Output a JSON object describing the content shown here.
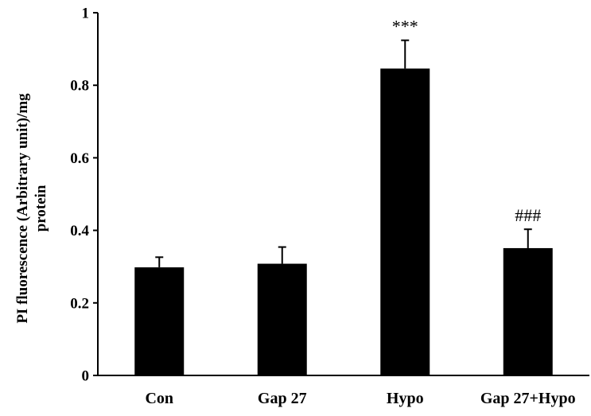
{
  "chart_data": {
    "type": "bar",
    "categories": [
      "Con",
      "Gap 27",
      "Hypo",
      "Gap 27+Hypo"
    ],
    "values": [
      0.298,
      0.308,
      0.846,
      0.351
    ],
    "errors": [
      0.028,
      0.046,
      0.078,
      0.052
    ],
    "annotations": [
      "",
      "",
      "***",
      "###"
    ],
    "ylabel_lines": [
      "PI fluorescence (Arbitrary unit)/mg",
      "protein"
    ],
    "xlabel": "",
    "ylim": [
      0,
      1
    ],
    "yticks": [
      0,
      0.2,
      0.4,
      0.6,
      0.8,
      1
    ],
    "ytick_labels": [
      "0",
      "0.2",
      "0.4",
      "0.6",
      "0.8",
      "1"
    ],
    "grid": false,
    "bar_color": "#000000"
  }
}
